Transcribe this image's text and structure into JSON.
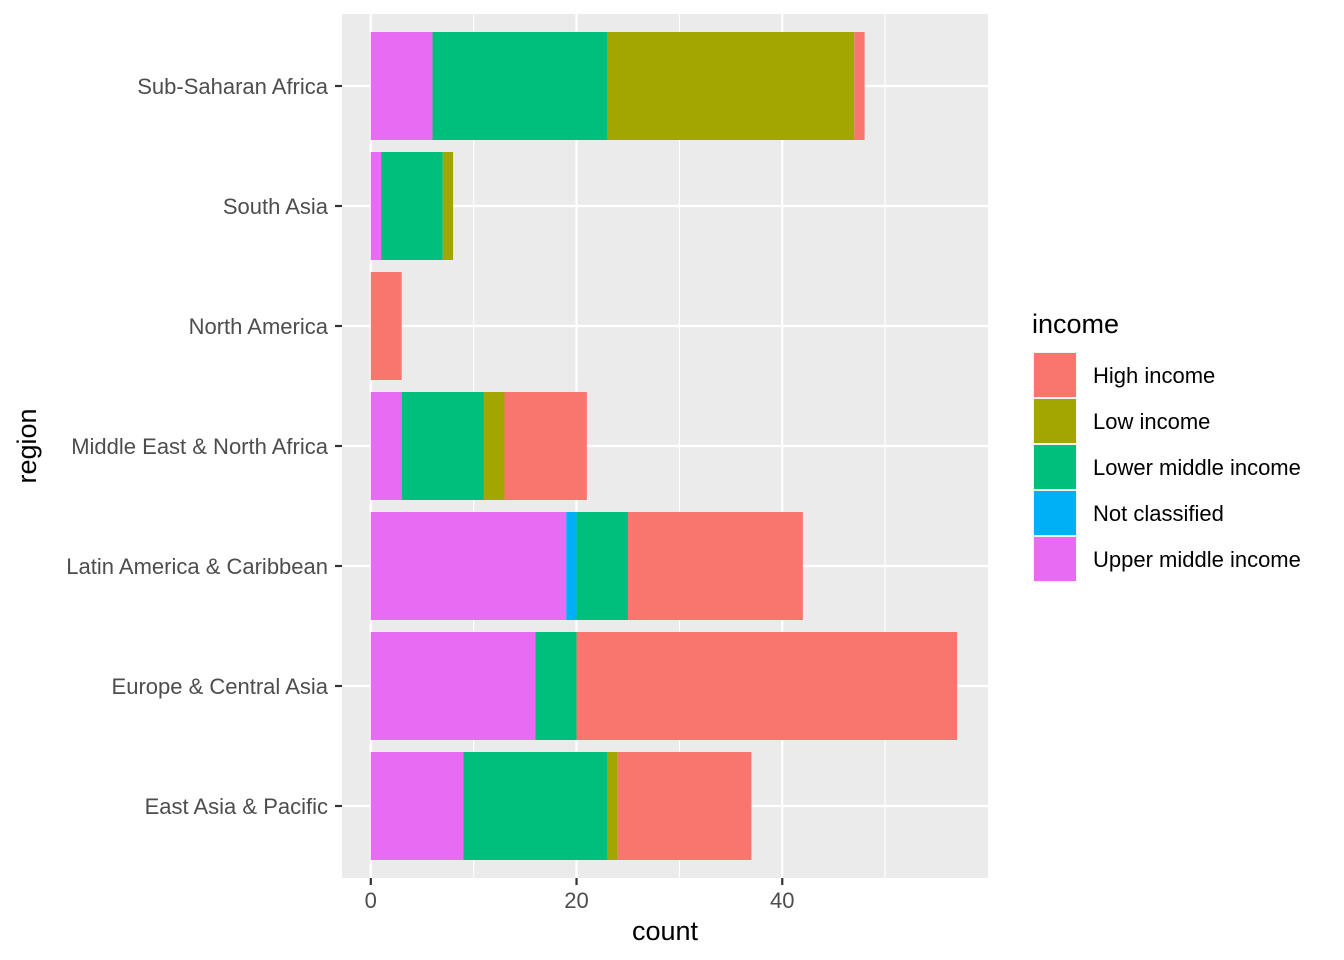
{
  "chart_data": {
    "type": "bar",
    "orientation": "horizontal",
    "stacked": true,
    "xlabel": "count",
    "ylabel": "region",
    "xlim": [
      -2.8,
      60
    ],
    "x_ticks": [
      0,
      20,
      40
    ],
    "x_tick_labels": [
      "0",
      "20",
      "40"
    ],
    "categories": [
      "East Asia & Pacific",
      "Europe & Central Asia",
      "Latin America & Caribbean",
      "Middle East & North Africa",
      "North America",
      "South Asia",
      "Sub-Saharan Africa"
    ],
    "stack_order_from_zero": [
      "Upper middle income",
      "Not classified",
      "Lower middle income",
      "Low income",
      "High income"
    ],
    "series": [
      {
        "name": "High income",
        "color": "#F8766D",
        "values": [
          13,
          37,
          17,
          8,
          3,
          0,
          1
        ]
      },
      {
        "name": "Low income",
        "color": "#A3A500",
        "values": [
          1,
          0,
          0,
          2,
          0,
          1,
          24
        ]
      },
      {
        "name": "Lower middle income",
        "color": "#00BF7D",
        "values": [
          14,
          4,
          5,
          8,
          0,
          6,
          17
        ]
      },
      {
        "name": "Not classified",
        "color": "#00B0F6",
        "values": [
          0,
          0,
          1,
          0,
          0,
          0,
          0
        ]
      },
      {
        "name": "Upper middle income",
        "color": "#E76BF3",
        "values": [
          9,
          16,
          19,
          3,
          0,
          1,
          6
        ]
      }
    ],
    "legend": {
      "title": "income",
      "position": "right",
      "entries": [
        "High income",
        "Low income",
        "Lower middle income",
        "Not classified",
        "Upper middle income"
      ]
    },
    "grid": true,
    "panel_background": "#EBEBEB"
  }
}
